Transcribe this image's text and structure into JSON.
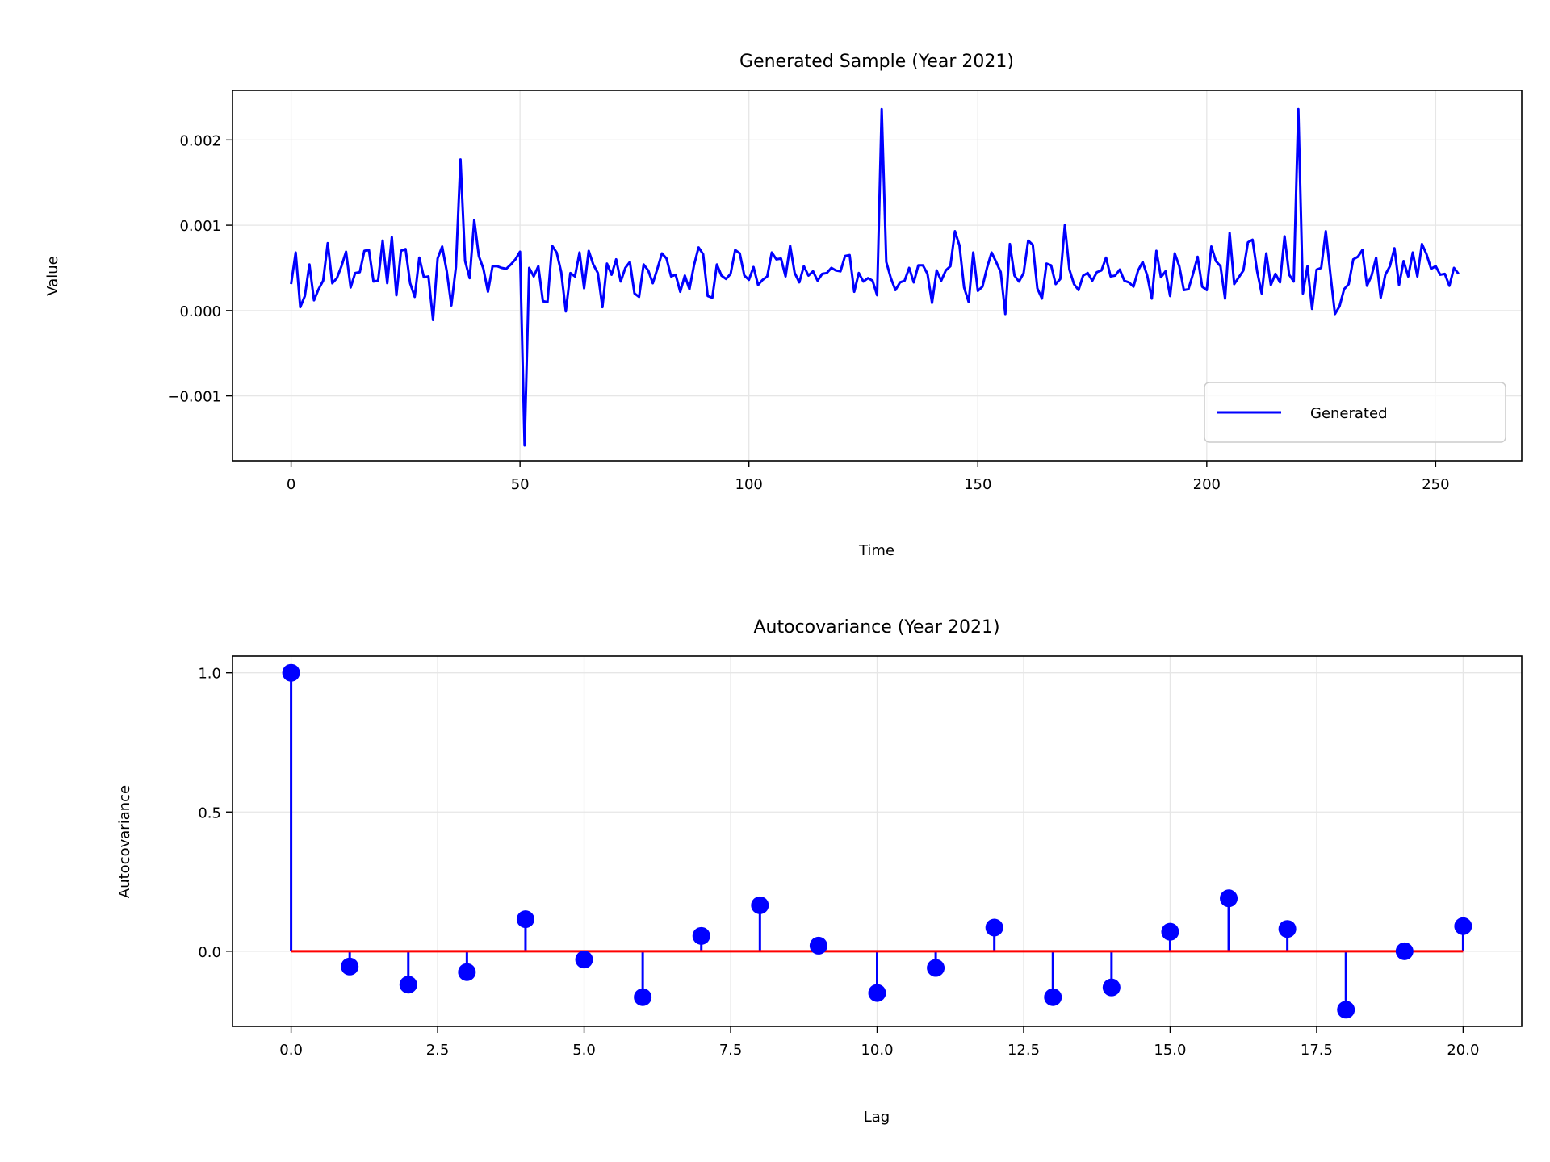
{
  "chart_data": [
    {
      "type": "line",
      "title": "Generated Sample (Year 2021)",
      "xlabel": "Time",
      "ylabel": "Value",
      "xlim": [
        -12.8,
        268.8
      ],
      "ylim": [
        -0.00176,
        0.00258
      ],
      "grid": true,
      "legend": "bottom-right",
      "xticks": [
        0,
        50,
        100,
        150,
        200,
        250
      ],
      "xtick_labels": [
        "0",
        "50",
        "100",
        "150",
        "200",
        "250"
      ],
      "yticks": [
        -0.001,
        0.0,
        0.001,
        0.002
      ],
      "ytick_labels": [
        "−0.001",
        "0.000",
        "0.001",
        "0.002"
      ],
      "series": [
        {
          "name": "Generated",
          "color": "#0000ff",
          "x_start": 0,
          "x_step": 1,
          "values": [
            0.00031,
            0.00068,
            4e-05,
            0.00017,
            0.00054,
            0.00012,
            0.00025,
            0.00035,
            0.00079,
            0.00032,
            0.00038,
            0.00052,
            0.00069,
            0.00027,
            0.00044,
            0.00045,
            0.0007,
            0.00071,
            0.00034,
            0.00035,
            0.00082,
            0.00032,
            0.00086,
            0.00018,
            0.0007,
            0.00072,
            0.00032,
            0.00016,
            0.00062,
            0.00039,
            0.0004,
            -0.00011,
            0.00061,
            0.00075,
            0.00046,
            6e-05,
            0.00051,
            0.00177,
            0.00058,
            0.00038,
            0.00106,
            0.00064,
            0.00049,
            0.00022,
            0.00052,
            0.00052,
            0.0005,
            0.00049,
            0.00054,
            0.0006,
            0.00069,
            -0.00158,
            0.0005,
            0.0004,
            0.00052,
            0.00011,
            0.0001,
            0.00076,
            0.00068,
            0.00045,
            -1e-05,
            0.00044,
            0.0004,
            0.00068,
            0.00026,
            0.0007,
            0.00054,
            0.00044,
            4e-05,
            0.00055,
            0.00042,
            0.0006,
            0.00034,
            0.0005,
            0.00057,
            0.0002,
            0.00016,
            0.00054,
            0.00047,
            0.00032,
            0.00049,
            0.00067,
            0.00061,
            0.0004,
            0.00042,
            0.00022,
            0.00041,
            0.00025,
            0.00053,
            0.00074,
            0.00066,
            0.00017,
            0.00015,
            0.00054,
            0.00041,
            0.00037,
            0.00043,
            0.00071,
            0.00067,
            0.00041,
            0.00036,
            0.00051,
            0.0003,
            0.00036,
            0.0004,
            0.00068,
            0.0006,
            0.00061,
            0.0004,
            0.00076,
            0.00044,
            0.00033,
            0.00052,
            0.00041,
            0.00046,
            0.00035,
            0.00043,
            0.00044,
            0.0005,
            0.00047,
            0.00046,
            0.00064,
            0.00065,
            0.00022,
            0.00044,
            0.00034,
            0.00038,
            0.00035,
            0.00018,
            0.00236,
            0.00057,
            0.00038,
            0.00024,
            0.00033,
            0.00035,
            0.0005,
            0.00033,
            0.00053,
            0.00053,
            0.00043,
            9e-05,
            0.00047,
            0.00035,
            0.00047,
            0.00052,
            0.00093,
            0.00076,
            0.00027,
            0.0001,
            0.00068,
            0.00023,
            0.00028,
            0.0005,
            0.00068,
            0.00057,
            0.00045,
            -4e-05,
            0.00078,
            0.00041,
            0.00034,
            0.00044,
            0.00082,
            0.00077,
            0.00026,
            0.00014,
            0.00055,
            0.00053,
            0.00031,
            0.00037,
            0.001,
            0.00048,
            0.00031,
            0.00024,
            0.00041,
            0.00044,
            0.00035,
            0.00045,
            0.00047,
            0.00062,
            0.0004,
            0.00041,
            0.00048,
            0.00035,
            0.00033,
            0.00028,
            0.00047,
            0.00057,
            0.00041,
            0.00014,
            0.0007,
            0.00039,
            0.00046,
            0.00017,
            0.00067,
            0.00052,
            0.00024,
            0.00025,
            0.00043,
            0.00063,
            0.00028,
            0.00024,
            0.00075,
            0.00058,
            0.00052,
            0.00014,
            0.00091,
            0.00031,
            0.00039,
            0.00047,
            0.0008,
            0.00083,
            0.00046,
            0.0002,
            0.00067,
            0.0003,
            0.00043,
            0.00033,
            0.00087,
            0.00042,
            0.00034,
            0.00236,
            0.0002,
            0.00052,
            2e-05,
            0.00048,
            0.0005,
            0.00093,
            0.00043,
            -4e-05,
            5e-05,
            0.00025,
            0.00031,
            0.0006,
            0.00063,
            0.00071,
            0.00029,
            0.00041,
            0.00062,
            0.00015,
            0.00042,
            0.00052,
            0.00073,
            0.0003,
            0.00058,
            0.0004,
            0.00068,
            0.0004,
            0.00078,
            0.00066,
            0.00049,
            0.00052,
            0.00042,
            0.00043,
            0.00029,
            0.0005,
            0.00043
          ]
        }
      ]
    },
    {
      "type": "stem",
      "title": "Autocovariance (Year 2021)",
      "xlabel": "Lag",
      "ylabel": "Autocovariance",
      "xlim": [
        -1.0,
        21.0
      ],
      "ylim": [
        -0.27,
        1.06
      ],
      "grid": true,
      "xticks": [
        0.0,
        2.5,
        5.0,
        7.5,
        10.0,
        12.5,
        15.0,
        17.5,
        20.0
      ],
      "xtick_labels": [
        "0.0",
        "2.5",
        "5.0",
        "7.5",
        "10.0",
        "12.5",
        "15.0",
        "17.5",
        "20.0"
      ],
      "yticks": [
        0.0,
        0.5,
        1.0
      ],
      "ytick_labels": [
        "0.0",
        "0.5",
        "1.0"
      ],
      "baseline": 0.0,
      "baseline_color": "#ff0000",
      "stem_color": "#0000ff",
      "x": [
        0,
        1,
        2,
        3,
        4,
        5,
        6,
        7,
        8,
        9,
        10,
        11,
        12,
        13,
        14,
        15,
        16,
        17,
        18,
        19,
        20
      ],
      "values": [
        1.0,
        -0.055,
        -0.12,
        -0.075,
        0.115,
        -0.03,
        -0.165,
        0.055,
        0.165,
        0.02,
        -0.15,
        -0.06,
        0.085,
        -0.165,
        -0.13,
        0.07,
        0.19,
        0.08,
        -0.21,
        0.0,
        0.09
      ]
    }
  ]
}
